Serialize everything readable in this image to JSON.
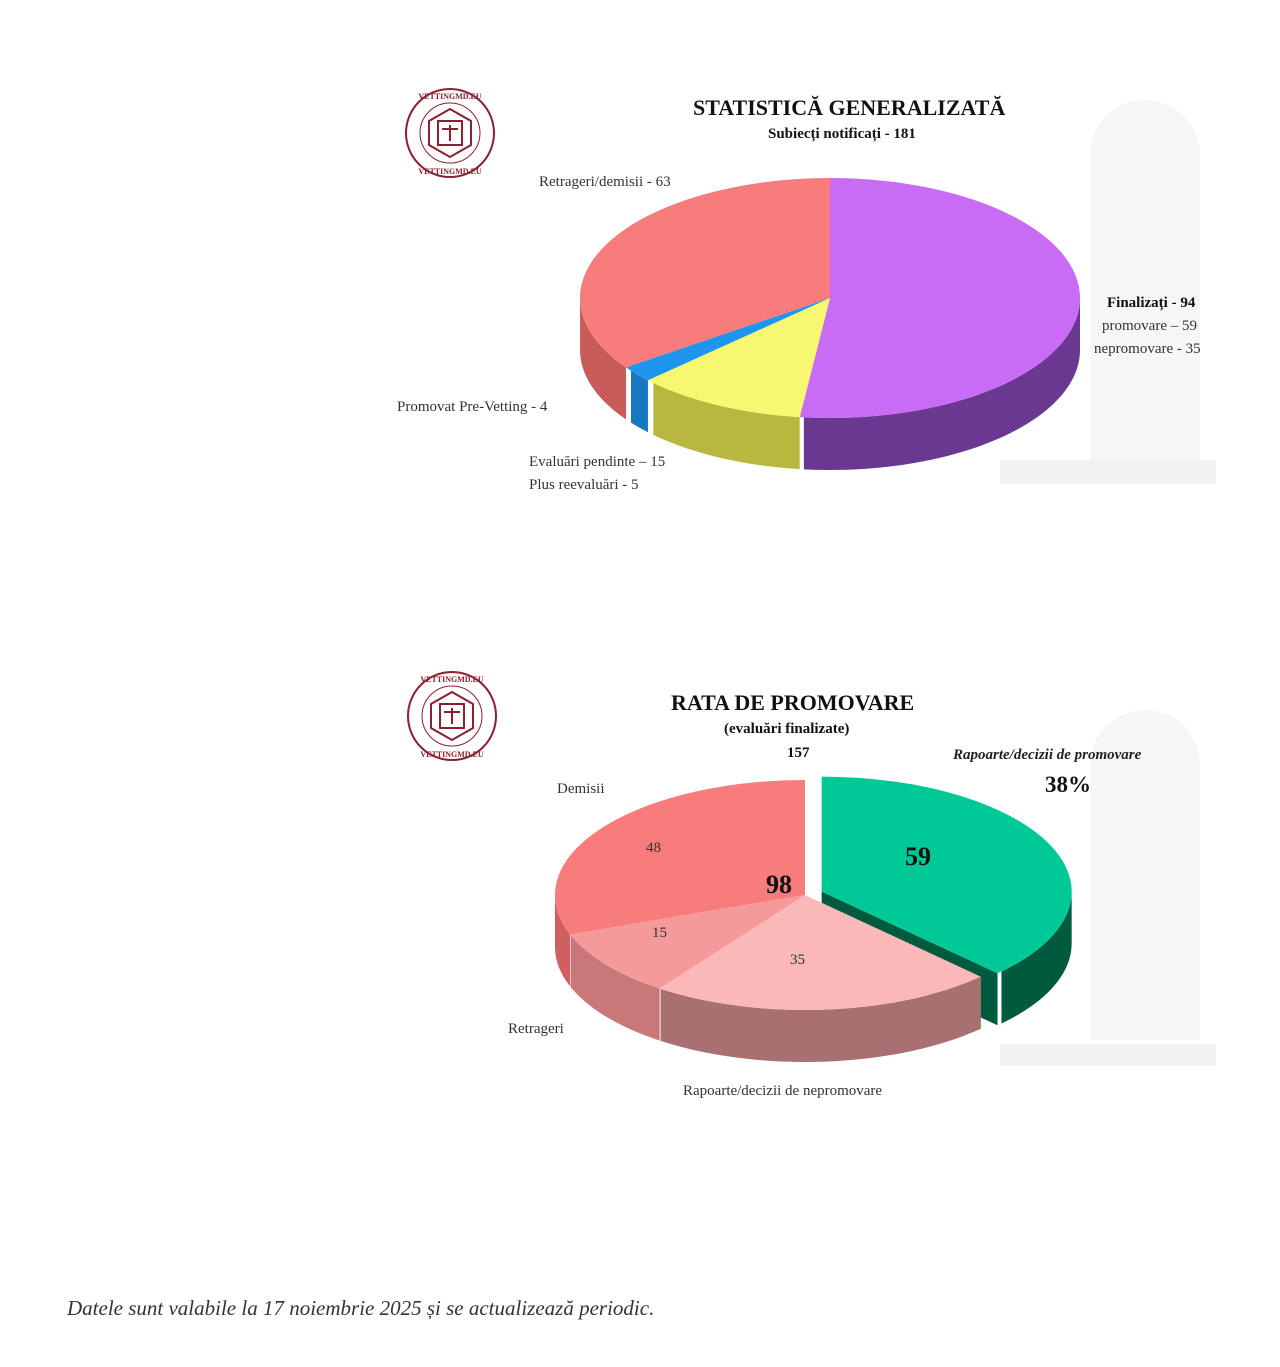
{
  "logo_text": "VETTINGMD.EU",
  "chart_data": [
    {
      "type": "pie",
      "style": "3d",
      "title": "STATISTICĂ GENERALIZATĂ",
      "subtitle": "Subiecți notificați - 181",
      "slices": [
        {
          "name": "Finalizați",
          "value": 94,
          "color": "#c86cf5",
          "side_color": "#6a3890",
          "label": "Finalizați - 94",
          "sublabels": [
            "promovare – 59",
            "nepromovare - 35"
          ]
        },
        {
          "name": "Evaluări pendinte",
          "value": 20,
          "color": "#f8f870",
          "side_color": "#b8b840",
          "label": "Evaluări pendinte – 15",
          "sublabels": [
            "Plus reevaluări - 5"
          ]
        },
        {
          "name": "Promovat Pre-Vetting",
          "value": 4,
          "color": "#1e96f0",
          "side_color": "#1578c0",
          "label": "Promovat Pre-Vetting - 4"
        },
        {
          "name": "Retrageri/demisii",
          "value": 63,
          "color": "#f87c7c",
          "side_color": "#c85a5a",
          "label": "Retrageri/demisii - 63"
        }
      ]
    },
    {
      "type": "pie",
      "style": "3d",
      "title": "RATA DE PROMOVARE",
      "subtitle": "(evaluări finalizate)",
      "total": "157",
      "slices": [
        {
          "name": "Rapoarte/decizii de promovare",
          "value": 59,
          "color": "#00c896",
          "side_color": "#005a3e",
          "exploded": true,
          "data_label": "59",
          "label": "Rapoarte/decizii de promovare",
          "percent_label": "38%"
        },
        {
          "name": "Rapoarte/decizii de nepromovare",
          "value": 35,
          "color": "#fbb8b8",
          "side_color": "#a87070",
          "data_label": "35",
          "label": "Rapoarte/decizii de nepromovare"
        },
        {
          "name": "Retrageri",
          "value": 15,
          "color": "#f49a9a",
          "side_color": "#c87878",
          "data_label": "15",
          "label": "Retrageri"
        },
        {
          "name": "Demisii",
          "value": 48,
          "color": "#f87c7c",
          "side_color": "#d06060",
          "data_label": "48",
          "label": "Demisii"
        }
      ],
      "group_total_label": "98"
    }
  ],
  "footer": "Datele sunt valabile la 17 noiembrie 2025 și se actualizează periodic."
}
